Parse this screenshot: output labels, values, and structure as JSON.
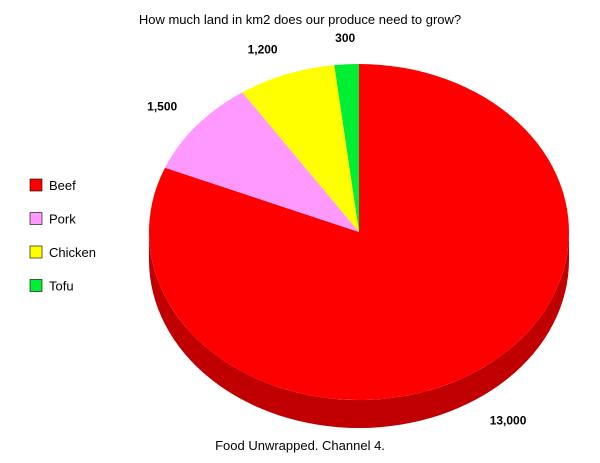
{
  "chart_data": {
    "type": "pie",
    "title": "How much land in km2 does our produce need to grow?",
    "source": "Food Unwrapped. Channel 4.",
    "legend_position": "left",
    "slices": [
      {
        "label": "Beef",
        "value": 13000,
        "display": "13,000",
        "color": "#ff0000",
        "side_color": "#c00000"
      },
      {
        "label": "Pork",
        "value": 1500,
        "display": "1,500",
        "color": "#ff99ff",
        "side_color": "#cc66cc"
      },
      {
        "label": "Chicken",
        "value": 1200,
        "display": "1,200",
        "color": "#ffff00",
        "side_color": "#cccc00"
      },
      {
        "label": "Tofu",
        "value": 300,
        "display": "300",
        "color": "#00ee33",
        "side_color": "#00aa22"
      }
    ]
  }
}
